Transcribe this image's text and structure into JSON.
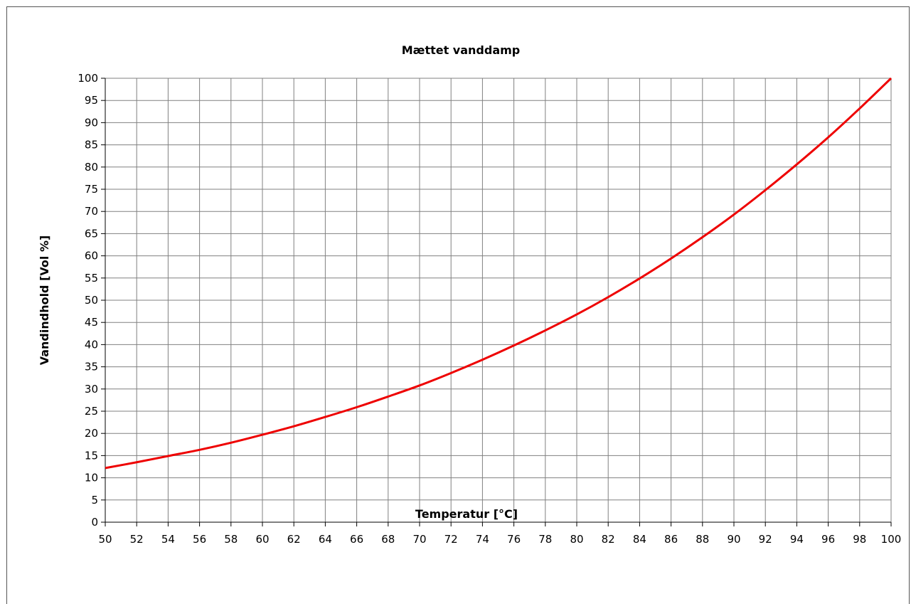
{
  "chart_data": {
    "type": "line",
    "title": "Mættet vanddamp",
    "xlabel": "Temperatur [°C]",
    "ylabel": "Vandindhold [Vol %]",
    "xlim": [
      50,
      100
    ],
    "ylim": [
      0,
      100
    ],
    "x_ticks": [
      "50",
      "52",
      "54",
      "56",
      "58",
      "60",
      "62",
      "64",
      "66",
      "68",
      "70",
      "72",
      "74",
      "76",
      "78",
      "80",
      "82",
      "84",
      "86",
      "88",
      "90",
      "92",
      "94",
      "96",
      "98",
      "100"
    ],
    "y_ticks": [
      "0",
      "5",
      "10",
      "15",
      "20",
      "25",
      "30",
      "35",
      "40",
      "45",
      "50",
      "55",
      "60",
      "65",
      "70",
      "75",
      "80",
      "85",
      "90",
      "95",
      "100"
    ],
    "grid": true,
    "legend": "none",
    "series": [
      {
        "color": "#ee0000",
        "x": [
          50,
          52,
          54,
          56,
          58,
          60,
          62,
          64,
          66,
          68,
          70,
          72,
          74,
          76,
          78,
          80,
          82,
          84,
          86,
          88,
          90,
          92,
          94,
          96,
          98,
          100
        ],
        "y": [
          12.2,
          13.5,
          14.9,
          16.3,
          17.9,
          19.7,
          21.6,
          23.7,
          25.9,
          28.3,
          30.8,
          33.6,
          36.6,
          39.8,
          43.2,
          46.8,
          50.7,
          54.9,
          59.4,
          64.2,
          69.3,
          74.8,
          80.6,
          86.7,
          93.2,
          100
        ]
      }
    ]
  }
}
